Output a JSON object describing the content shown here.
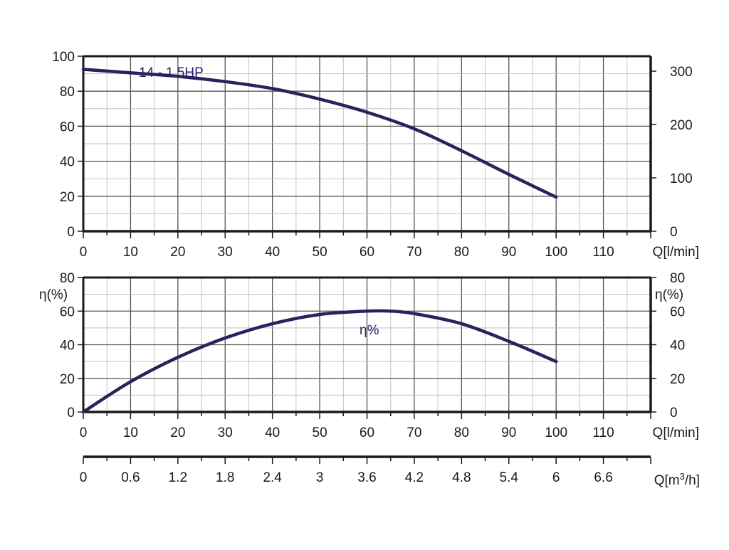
{
  "colors": {
    "curve": "#26245e",
    "frame": "#1a1a1a",
    "grid_major": "#555555",
    "grid_minor": "#bdbdbd",
    "label": "#26245e"
  },
  "chart_data": [
    {
      "type": "line",
      "name": "head-curve",
      "series_label": "14 - 1.5HP",
      "x_axis_label": "Q[l/min]",
      "xlim": [
        0,
        120
      ],
      "x_ticks": [
        0,
        10,
        20,
        30,
        40,
        50,
        60,
        70,
        80,
        90,
        100,
        110
      ],
      "x_tick_labels": [
        "0",
        "10",
        "20",
        "30",
        "40",
        "50",
        "60",
        "70",
        "80",
        "90",
        "100",
        "110"
      ],
      "ylim_left": [
        0,
        100
      ],
      "y_ticks_left": [
        0,
        20,
        40,
        60,
        80,
        100
      ],
      "y_tick_labels_left": [
        "0",
        "20",
        "40",
        "60",
        "80",
        "100"
      ],
      "ylim_right": [
        0,
        328
      ],
      "y_ticks_right": [
        0,
        100,
        200,
        300
      ],
      "y_tick_labels_right": [
        "0",
        "100",
        "200",
        "300"
      ],
      "grid": true,
      "series": [
        {
          "x": [
            0,
            10,
            20,
            30,
            40,
            50,
            60,
            70,
            80,
            90,
            100
          ],
          "y": [
            92.5,
            90.5,
            88.5,
            85.5,
            81.5,
            75.5,
            68,
            58.5,
            46,
            32.5,
            19.5
          ]
        }
      ]
    },
    {
      "type": "line",
      "name": "efficiency-curve",
      "series_label": "η%",
      "y_axis_label_left": "η(%)",
      "y_axis_label_right": "η(%)",
      "x_axis_label": "Q[l/min]",
      "xlim": [
        0,
        120
      ],
      "x_ticks": [
        0,
        10,
        20,
        30,
        40,
        50,
        60,
        70,
        80,
        90,
        100,
        110
      ],
      "x_tick_labels": [
        "0",
        "10",
        "20",
        "30",
        "40",
        "50",
        "60",
        "70",
        "80",
        "90",
        "100",
        "110"
      ],
      "ylim": [
        0,
        80
      ],
      "y_ticks": [
        0,
        20,
        40,
        60,
        80
      ],
      "y_tick_labels": [
        "0",
        "20",
        "40",
        "60",
        "80"
      ],
      "grid": true,
      "series": [
        {
          "x": [
            0,
            10,
            20,
            30,
            40,
            50,
            60,
            65,
            70,
            80,
            90,
            100
          ],
          "y": [
            0,
            18,
            32.5,
            44,
            52.5,
            58,
            60,
            60,
            58.5,
            52.5,
            42,
            30
          ]
        }
      ]
    },
    {
      "type": "axis",
      "name": "flow-m3h-axis",
      "axis_label": "Q[m³/h]",
      "axis_label_base": "Q[m",
      "axis_label_sup": "3",
      "axis_label_tail": "/h]",
      "xlim": [
        0,
        7.2
      ],
      "ticks": [
        0,
        0.6,
        1.2,
        1.8,
        2.4,
        3,
        3.6,
        4.2,
        4.8,
        5.4,
        6,
        6.6
      ],
      "tick_labels": [
        "0",
        "0.6",
        "1.2",
        "1.8",
        "2.4",
        "3",
        "3.6",
        "4.2",
        "4.8",
        "5.4",
        "6",
        "6.6"
      ]
    }
  ]
}
